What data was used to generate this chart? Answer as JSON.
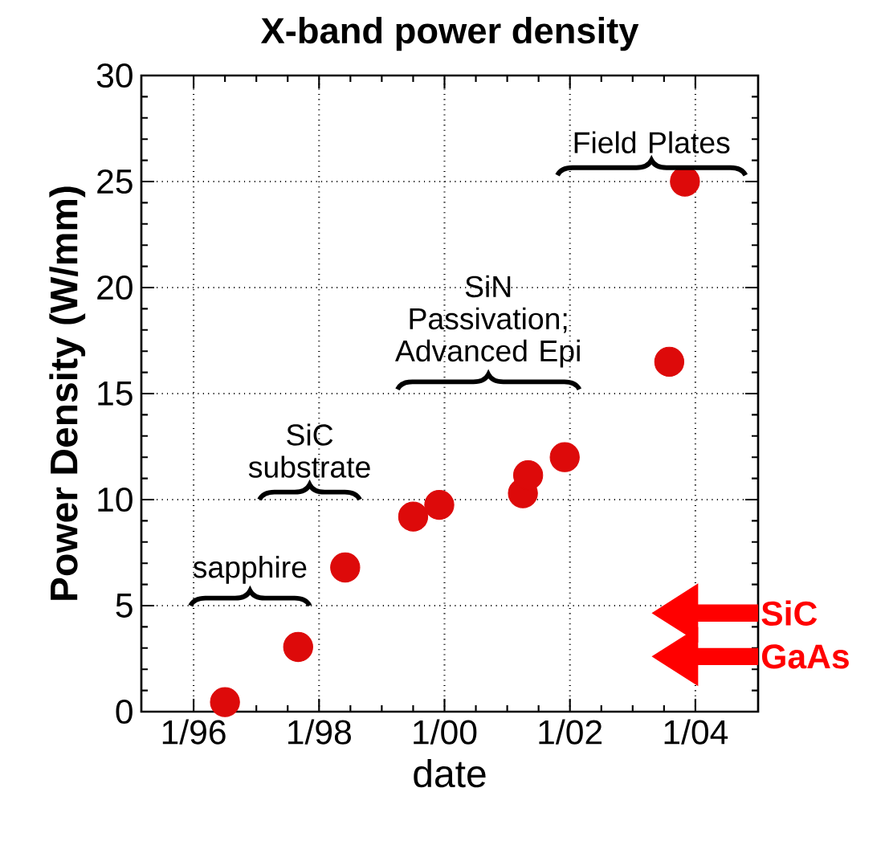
{
  "chart_data": {
    "type": "scatter",
    "title": "X-band power density",
    "xlabel": "date",
    "ylabel": "Power Density (W/mm)",
    "x": [
      "1996-07",
      "1997-09",
      "1998-06",
      "1999-07",
      "1999-12",
      "2001-04",
      "2001-05",
      "2001-12",
      "2003-08",
      "2003-11"
    ],
    "values": [
      0.45,
      3.05,
      6.8,
      9.2,
      9.75,
      10.3,
      11.15,
      12.0,
      16.5,
      25.0
    ],
    "color": "#dd0a0a",
    "marker": "circle",
    "grid": true,
    "xlim": [
      "1995-03",
      "2005-01"
    ],
    "xticks": [
      {
        "value": "1996-01",
        "label": "1/96"
      },
      {
        "value": "1998-01",
        "label": "1/98"
      },
      {
        "value": "2000-01",
        "label": "1/00"
      },
      {
        "value": "2002-01",
        "label": "1/02"
      },
      {
        "value": "2004-01",
        "label": "1/04"
      }
    ],
    "ylim": [
      0,
      30
    ],
    "yticks": [
      0,
      5,
      10,
      15,
      20,
      25,
      30
    ],
    "annotations": [
      "sapphire",
      "SiC substrate",
      "SiN Passivation; Advanced Epi",
      "Field Plates",
      "SiC",
      "GaAs"
    ]
  }
}
